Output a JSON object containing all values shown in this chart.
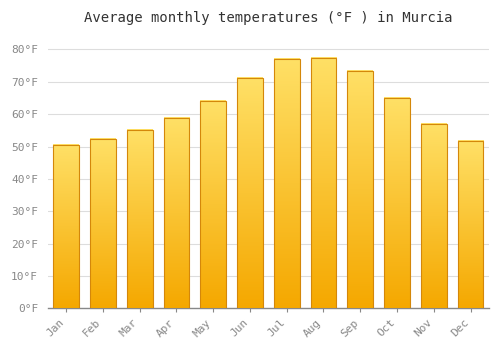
{
  "title": "Average monthly temperatures (°F ) in Murcia",
  "months": [
    "Jan",
    "Feb",
    "Mar",
    "Apr",
    "May",
    "Jun",
    "Jul",
    "Aug",
    "Sep",
    "Oct",
    "Nov",
    "Dec"
  ],
  "values": [
    50.5,
    52.2,
    55.0,
    58.8,
    64.0,
    71.2,
    77.0,
    77.5,
    73.4,
    65.0,
    57.0,
    51.8
  ],
  "bar_color_bottom": "#F5A800",
  "bar_color_top": "#FFE066",
  "bar_edge_color": "#D4870A",
  "background_color": "#FFFFFF",
  "grid_color": "#DDDDDD",
  "title_fontsize": 10,
  "tick_fontsize": 8,
  "tick_color": "#888888",
  "title_color": "#333333",
  "ylim": [
    0,
    85
  ],
  "yticks": [
    0,
    10,
    20,
    30,
    40,
    50,
    60,
    70,
    80
  ],
  "ytick_labels": [
    "0°F",
    "10°F",
    "20°F",
    "30°F",
    "40°F",
    "50°F",
    "60°F",
    "70°F",
    "80°F"
  ],
  "bar_width": 0.7
}
